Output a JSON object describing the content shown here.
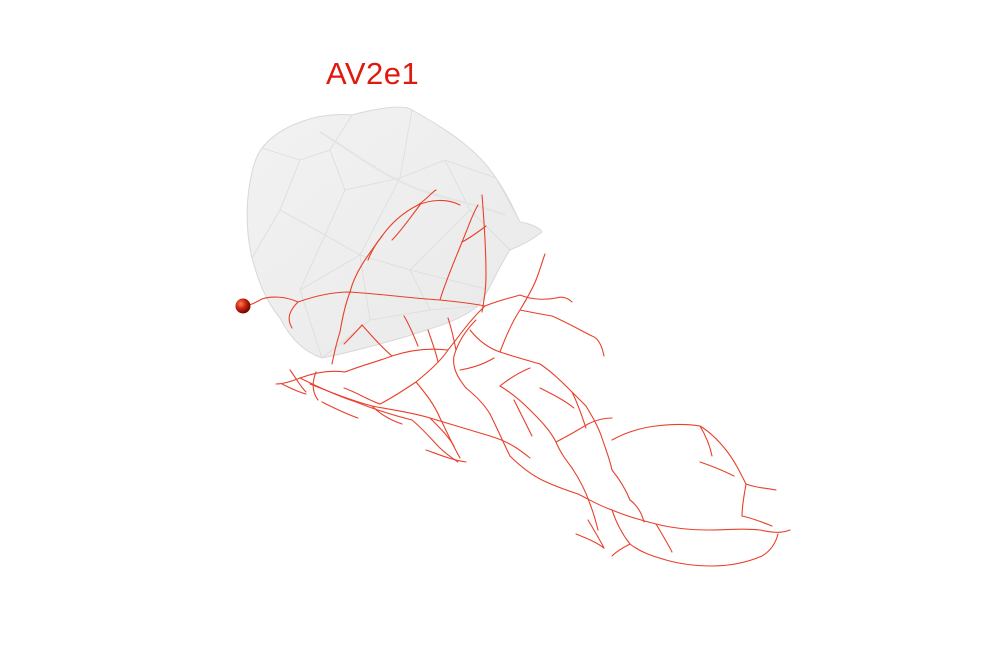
{
  "title": "AV2e1",
  "colors": {
    "neuron": "#e8402a",
    "soma": "#c81e0a",
    "title": "#e0190f",
    "volume_fill": "#efefef",
    "volume_edge": "#d6d6d6"
  }
}
